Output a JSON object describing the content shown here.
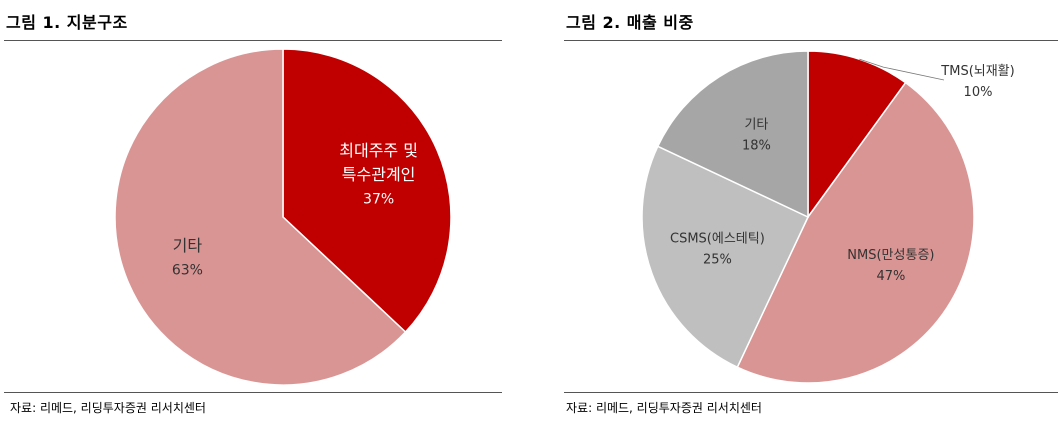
{
  "chart_data": [
    {
      "type": "pie",
      "title": "그림 1. 지분구조",
      "slices": [
        {
          "label": [
            "최대주주 및",
            "특수관계인"
          ],
          "value": 37,
          "value_label": "37%",
          "color": "#c00000",
          "text_color": "#ffffff"
        },
        {
          "label": [
            "기타"
          ],
          "value": 63,
          "value_label": "63%",
          "color": "#d99594",
          "text_color": "#333333"
        }
      ],
      "source": "자료: 리메드, 리딩투자증권 리서치센터"
    },
    {
      "type": "pie",
      "title": "그림 2. 매출 비중",
      "slices": [
        {
          "label": [
            "TMS(뇌재활)"
          ],
          "value": 10,
          "value_label": "10%",
          "color": "#c00000",
          "text_color": "#333333",
          "callout": true
        },
        {
          "label": [
            "NMS(만성통증)"
          ],
          "value": 47,
          "value_label": "47%",
          "color": "#d99594",
          "text_color": "#333333"
        },
        {
          "label": [
            "CSMS(에스테틱)"
          ],
          "value": 25,
          "value_label": "25%",
          "color": "#bfbfbf",
          "text_color": "#333333"
        },
        {
          "label": [
            "기타"
          ],
          "value": 18,
          "value_label": "18%",
          "color": "#a6a6a6",
          "text_color": "#333333"
        }
      ],
      "source": "자료: 리메드, 리딩투자증권 리서치센터"
    }
  ]
}
